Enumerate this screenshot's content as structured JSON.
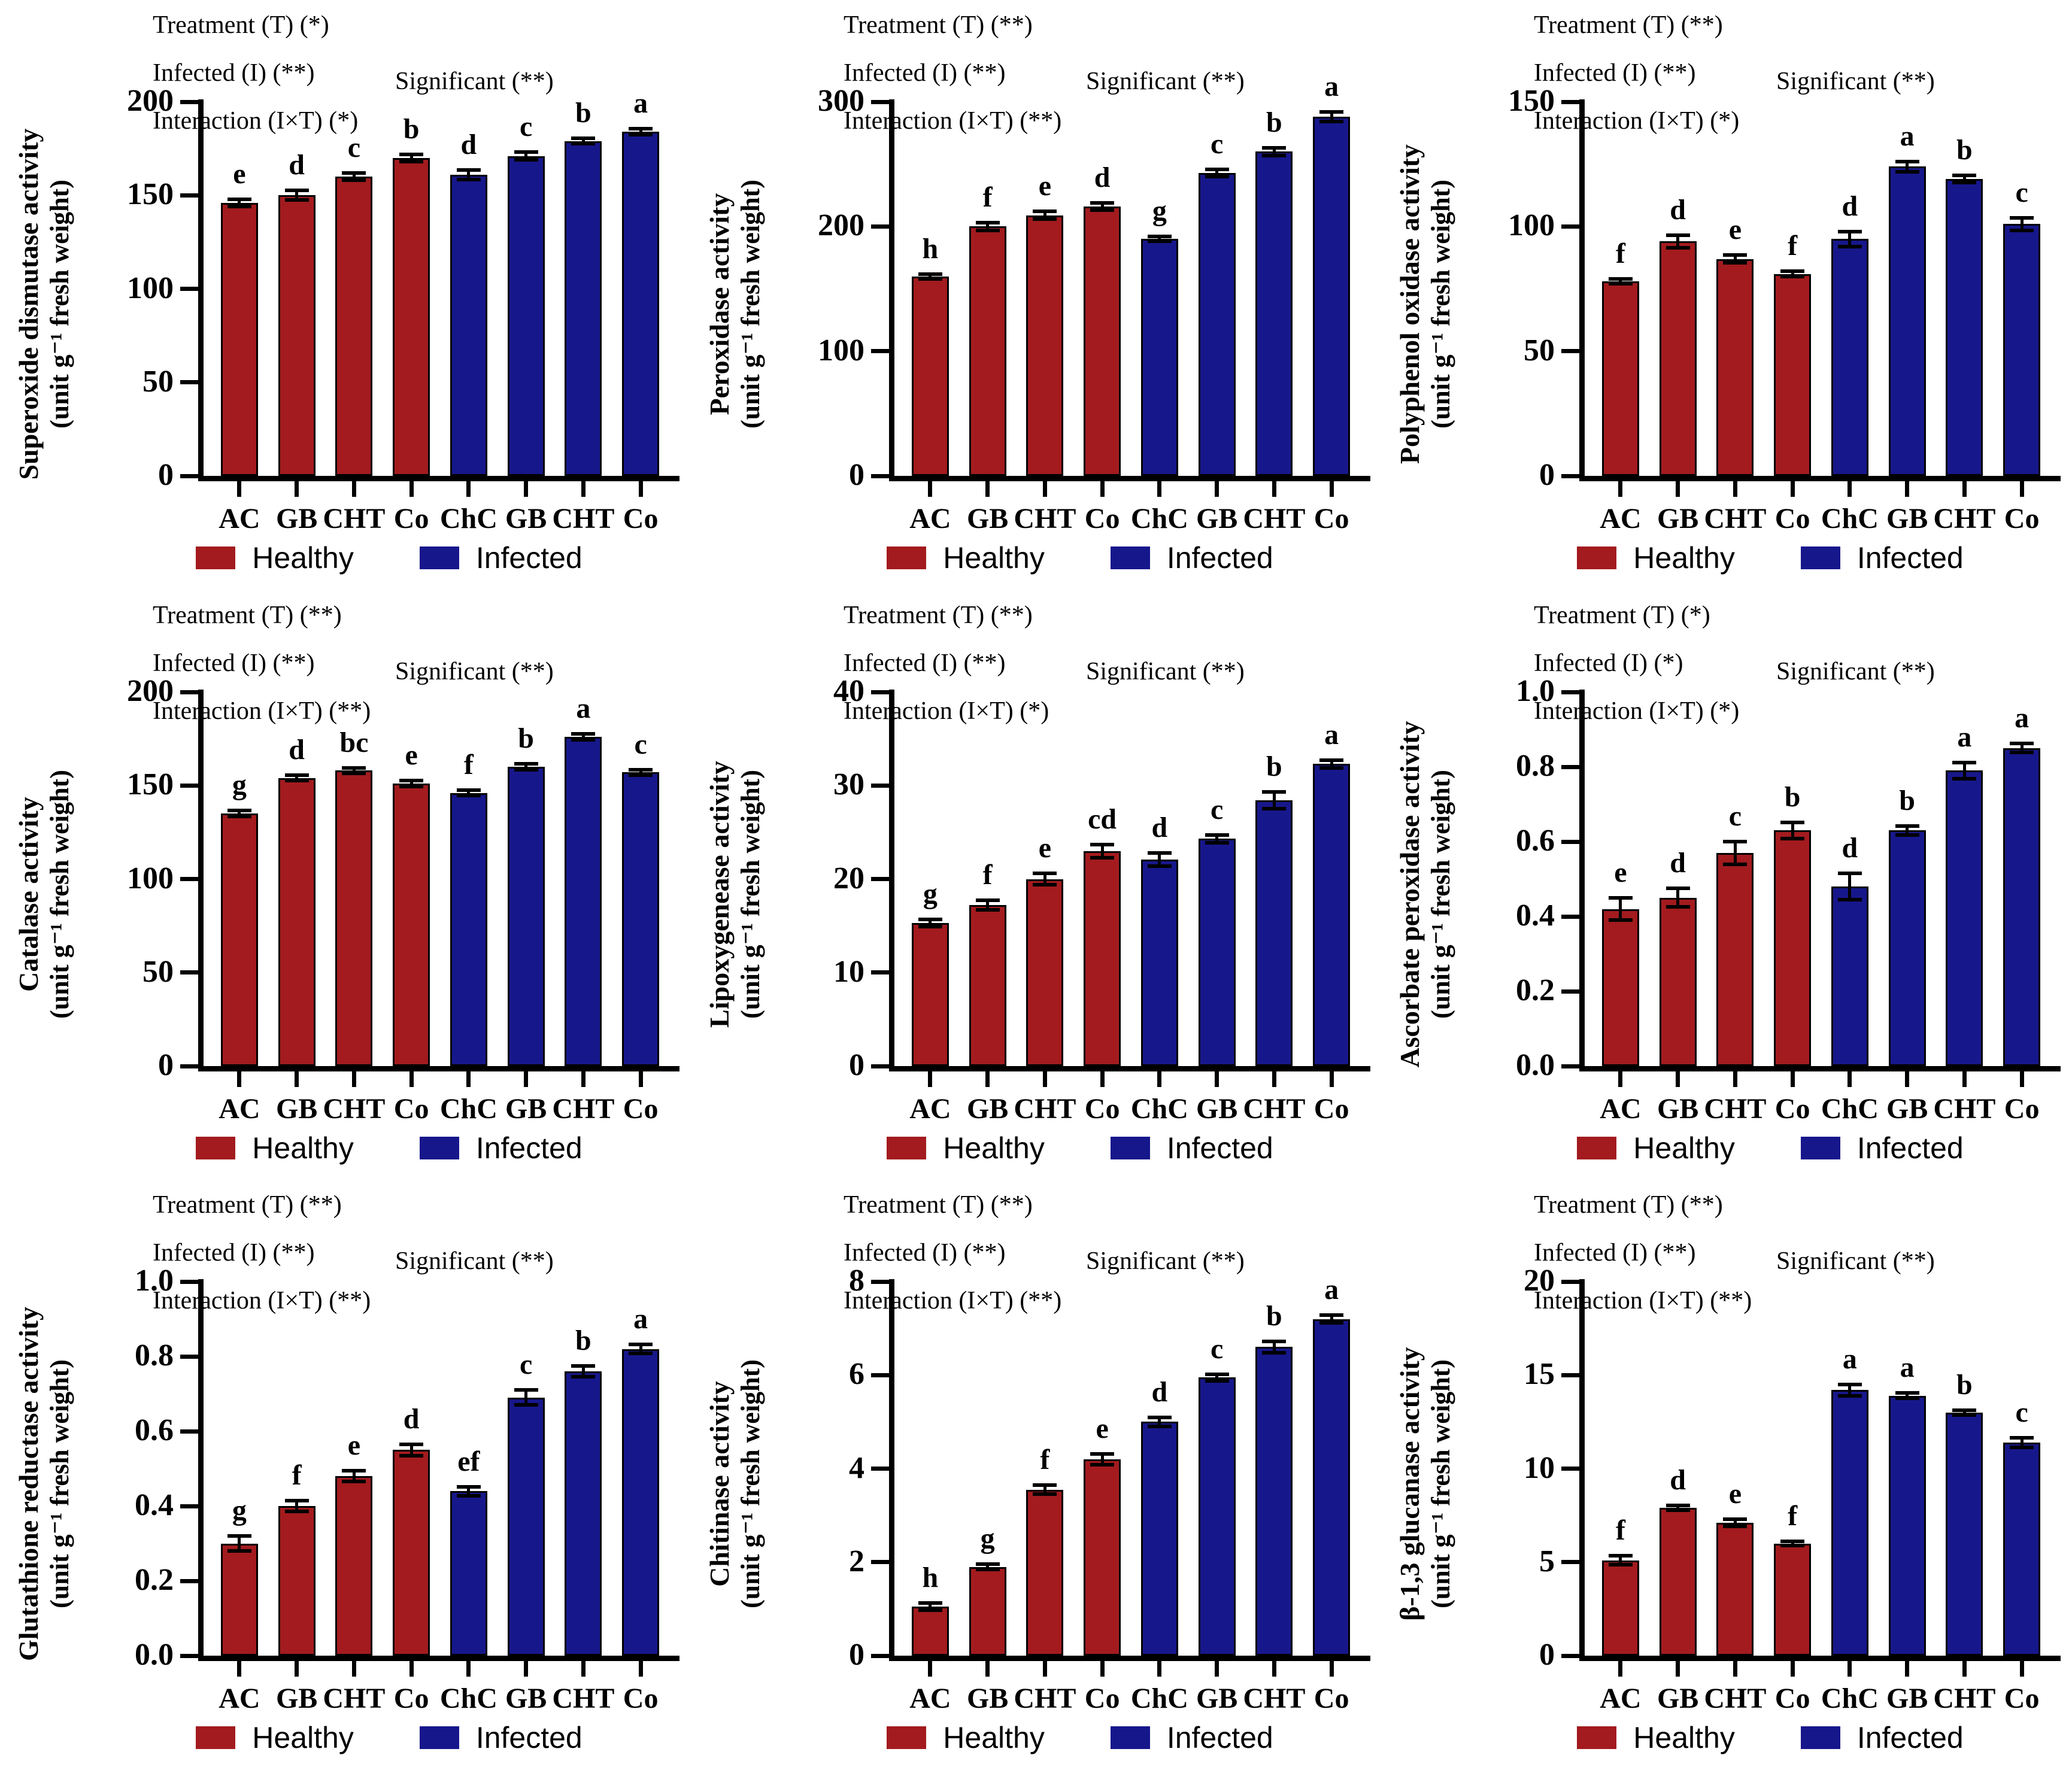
{
  "figure": {
    "background": "#ffffff",
    "rows": 3,
    "cols": 3
  },
  "colors": {
    "healthy": "#a31b1e",
    "infected": "#17178c",
    "axis": "#000000",
    "text": "#000000"
  },
  "legend": {
    "entries": [
      {
        "label": "Healthy",
        "color_key": "healthy"
      },
      {
        "label": "Infected",
        "color_key": "infected"
      }
    ]
  },
  "chart_data": [
    {
      "type": "bar",
      "name": "superoxide-dismutase-activity",
      "ylabel_line1": "Superoxide dismutase activity",
      "ylabel_line2": "(unit g⁻¹ fresh weight)",
      "categories": [
        "AC",
        "GB",
        "CHT",
        "Co",
        "ChC",
        "GB",
        "CHT",
        "Co"
      ],
      "groups": [
        "Healthy",
        "Healthy",
        "Healthy",
        "Healthy",
        "Infected",
        "Infected",
        "Infected",
        "Infected"
      ],
      "values": [
        146,
        150,
        160,
        170,
        161,
        171,
        179,
        184
      ],
      "errors": [
        2,
        2.5,
        2,
        2,
        2.5,
        2,
        1.5,
        1.5
      ],
      "sig_letters": [
        "e",
        "d",
        "c",
        "b",
        "d",
        "c",
        "b",
        "a"
      ],
      "ylim": [
        0,
        200
      ],
      "yticks": [
        0,
        50,
        100,
        150,
        200
      ],
      "ytick_labels": [
        "0",
        "50",
        "100",
        "150",
        "200"
      ],
      "annotations": {
        "treatment": "Treatment (T) (*)",
        "infected": "Infected (I) (**)",
        "interaction": "Interaction (I×T) (*)",
        "significant": "Significant (**)"
      }
    },
    {
      "type": "bar",
      "name": "peroxidase-activity",
      "ylabel_line1": "Peroxidase activity",
      "ylabel_line2": "(unit g⁻¹ fresh weight)",
      "categories": [
        "AC",
        "GB",
        "CHT",
        "Co",
        "ChC",
        "GB",
        "CHT",
        "Co"
      ],
      "groups": [
        "Healthy",
        "Healthy",
        "Healthy",
        "Healthy",
        "Infected",
        "Infected",
        "Infected",
        "Infected"
      ],
      "values": [
        160,
        200,
        209,
        216,
        190,
        243,
        260,
        288
      ],
      "errors": [
        2,
        3,
        3,
        3,
        2,
        3,
        3,
        4
      ],
      "sig_letters": [
        "h",
        "f",
        "e",
        "d",
        "g",
        "c",
        "b",
        "a"
      ],
      "ylim": [
        0,
        300
      ],
      "yticks": [
        0,
        100,
        200,
        300
      ],
      "ytick_labels": [
        "0",
        "100",
        "200",
        "300"
      ],
      "annotations": {
        "treatment": "Treatment (T) (**)",
        "infected": "Infected (I) (**)",
        "interaction": "Interaction (I×T) (**)",
        "significant": "Significant (**)"
      }
    },
    {
      "type": "bar",
      "name": "polyphenol-oxidase-activity",
      "ylabel_line1": "Polyphenol oxidase activity",
      "ylabel_line2": "(unit g⁻¹ fresh weight)",
      "categories": [
        "AC",
        "GB",
        "CHT",
        "Co",
        "ChC",
        "GB",
        "CHT",
        "Co"
      ],
      "groups": [
        "Healthy",
        "Healthy",
        "Healthy",
        "Healthy",
        "Infected",
        "Infected",
        "Infected",
        "Infected"
      ],
      "values": [
        78,
        94,
        87,
        81,
        95,
        124,
        119,
        101
      ],
      "errors": [
        1,
        2.5,
        1.5,
        1,
        3,
        2,
        1.5,
        2.5
      ],
      "sig_letters": [
        "f",
        "d",
        "e",
        "f",
        "d",
        "a",
        "b",
        "c"
      ],
      "ylim": [
        0,
        150
      ],
      "yticks": [
        0,
        50,
        100,
        150
      ],
      "ytick_labels": [
        "0",
        "50",
        "100",
        "150"
      ],
      "annotations": {
        "treatment": "Treatment (T) (**)",
        "infected": "Infected (I) (**)",
        "interaction": "Interaction (I×T) (*)",
        "significant": "Significant (**)"
      }
    },
    {
      "type": "bar",
      "name": "catalase-activity",
      "ylabel_line1": "Catalase activity",
      "ylabel_line2": "(unit g⁻¹ fresh weight)",
      "categories": [
        "AC",
        "GB",
        "CHT",
        "Co",
        "ChC",
        "GB",
        "CHT",
        "Co"
      ],
      "groups": [
        "Healthy",
        "Healthy",
        "Healthy",
        "Healthy",
        "Infected",
        "Infected",
        "Infected",
        "Infected"
      ],
      "values": [
        135,
        154,
        158,
        151,
        146,
        160,
        176,
        157
      ],
      "errors": [
        1.5,
        1.5,
        1.5,
        1.5,
        1.5,
        1.5,
        1.5,
        1.5
      ],
      "sig_letters": [
        "g",
        "d",
        "bc",
        "e",
        "f",
        "b",
        "a",
        "c"
      ],
      "ylim": [
        0,
        200
      ],
      "yticks": [
        0,
        50,
        100,
        150,
        200
      ],
      "ytick_labels": [
        "0",
        "50",
        "100",
        "150",
        "200"
      ],
      "annotations": {
        "treatment": "Treatment (T) (**)",
        "infected": "Infected (I) (**)",
        "interaction": "Interaction (I×T) (**)",
        "significant": "Significant (**)"
      }
    },
    {
      "type": "bar",
      "name": "lipoxygenease-activity",
      "ylabel_line1": "Lipoxygenease activity",
      "ylabel_line2": "(unit g⁻¹ fresh weight)",
      "categories": [
        "AC",
        "GB",
        "CHT",
        "Co",
        "ChC",
        "GB",
        "CHT",
        "Co"
      ],
      "groups": [
        "Healthy",
        "Healthy",
        "Healthy",
        "Healthy",
        "Infected",
        "Infected",
        "Infected",
        "Infected"
      ],
      "values": [
        15.3,
        17.2,
        20.0,
        23.0,
        22.1,
        24.3,
        28.4,
        32.3
      ],
      "errors": [
        0.4,
        0.5,
        0.6,
        0.7,
        0.7,
        0.4,
        0.9,
        0.4
      ],
      "sig_letters": [
        "g",
        "f",
        "e",
        "cd",
        "d",
        "c",
        "b",
        "a"
      ],
      "ylim": [
        0,
        40
      ],
      "yticks": [
        0,
        10,
        20,
        30,
        40
      ],
      "ytick_labels": [
        "0",
        "10",
        "20",
        "30",
        "40"
      ],
      "annotations": {
        "treatment": "Treatment (T) (**)",
        "infected": "Infected (I) (**)",
        "interaction": "Interaction (I×T) (*)",
        "significant": "Significant (**)"
      }
    },
    {
      "type": "bar",
      "name": "ascorbate-peroxidase-activity",
      "ylabel_line1": "Ascorbate peroxidase activity",
      "ylabel_line2": "(unit g⁻¹ fresh weight)",
      "categories": [
        "AC",
        "GB",
        "CHT",
        "Co",
        "ChC",
        "GB",
        "CHT",
        "Co"
      ],
      "groups": [
        "Healthy",
        "Healthy",
        "Healthy",
        "Healthy",
        "Infected",
        "Infected",
        "Infected",
        "Infected"
      ],
      "values": [
        0.42,
        0.45,
        0.57,
        0.63,
        0.48,
        0.63,
        0.79,
        0.85
      ],
      "errors": [
        0.03,
        0.025,
        0.03,
        0.022,
        0.035,
        0.012,
        0.022,
        0.012
      ],
      "sig_letters": [
        "e",
        "d",
        "c",
        "b",
        "d",
        "b",
        "a",
        "a"
      ],
      "ylim": [
        0,
        1.0
      ],
      "yticks": [
        0,
        0.2,
        0.4,
        0.6,
        0.8,
        1.0
      ],
      "ytick_labels": [
        "0.0",
        "0.2",
        "0.4",
        "0.6",
        "0.8",
        "1.0"
      ],
      "annotations": {
        "treatment": "Treatment (T) (*)",
        "infected": "Infected (I) (*)",
        "interaction": "Interaction (I×T) (*)",
        "significant": "Significant (**)"
      }
    },
    {
      "type": "bar",
      "name": "glutathione-reductase-activity",
      "ylabel_line1": "Glutathione reductase activity",
      "ylabel_line2": "(unit g⁻¹ fresh weight)",
      "categories": [
        "AC",
        "GB",
        "CHT",
        "Co",
        "ChC",
        "GB",
        "CHT",
        "Co"
      ],
      "groups": [
        "Healthy",
        "Healthy",
        "Healthy",
        "Healthy",
        "Infected",
        "Infected",
        "Infected",
        "Infected"
      ],
      "values": [
        0.3,
        0.4,
        0.48,
        0.55,
        0.44,
        0.69,
        0.76,
        0.82
      ],
      "errors": [
        0.02,
        0.015,
        0.015,
        0.015,
        0.012,
        0.02,
        0.015,
        0.012
      ],
      "sig_letters": [
        "g",
        "f",
        "e",
        "d",
        "ef",
        "c",
        "b",
        "a"
      ],
      "ylim": [
        0,
        1.0
      ],
      "yticks": [
        0,
        0.2,
        0.4,
        0.6,
        0.8,
        1.0
      ],
      "ytick_labels": [
        "0.0",
        "0.2",
        "0.4",
        "0.6",
        "0.8",
        "1.0"
      ],
      "annotations": {
        "treatment": "Treatment (T) (**)",
        "infected": "Infected (I) (**)",
        "interaction": "Interaction (I×T) (**)",
        "significant": "Significant (**)"
      }
    },
    {
      "type": "bar",
      "name": "chitinase-activity",
      "ylabel_line1": "Chitinase activity",
      "ylabel_line2": "(unit g⁻¹ fresh weight)",
      "categories": [
        "AC",
        "GB",
        "CHT",
        "Co",
        "ChC",
        "GB",
        "CHT",
        "Co"
      ],
      "groups": [
        "Healthy",
        "Healthy",
        "Healthy",
        "Healthy",
        "Infected",
        "Infected",
        "Infected",
        "Infected"
      ],
      "values": [
        1.05,
        1.9,
        3.55,
        4.2,
        5.0,
        5.95,
        6.6,
        7.2
      ],
      "errors": [
        0.08,
        0.06,
        0.1,
        0.12,
        0.1,
        0.07,
        0.12,
        0.08
      ],
      "sig_letters": [
        "h",
        "g",
        "f",
        "e",
        "d",
        "c",
        "b",
        "a"
      ],
      "ylim": [
        0,
        8
      ],
      "yticks": [
        0,
        2,
        4,
        6,
        8
      ],
      "ytick_labels": [
        "0",
        "2",
        "4",
        "6",
        "8"
      ],
      "annotations": {
        "treatment": "Treatment (T) (**)",
        "infected": "Infected (I) (**)",
        "interaction": "Interaction (I×T) (**)",
        "significant": "Significant (**)"
      }
    },
    {
      "type": "bar",
      "name": "beta-1-3-glucanase-activity",
      "ylabel_line1": "β-1,3 glucanase activity",
      "ylabel_line2": "(unit g⁻¹ fresh weight)",
      "categories": [
        "AC",
        "GB",
        "CHT",
        "Co",
        "ChC",
        "GB",
        "CHT",
        "Co"
      ],
      "groups": [
        "Healthy",
        "Healthy",
        "Healthy",
        "Healthy",
        "Infected",
        "Infected",
        "Infected",
        "Infected"
      ],
      "values": [
        5.1,
        7.9,
        7.1,
        6.0,
        14.2,
        13.9,
        13.0,
        11.4
      ],
      "errors": [
        0.25,
        0.12,
        0.2,
        0.12,
        0.3,
        0.15,
        0.12,
        0.25
      ],
      "sig_letters": [
        "f",
        "d",
        "e",
        "f",
        "a",
        "a",
        "b",
        "c"
      ],
      "ylim": [
        0,
        20
      ],
      "yticks": [
        0,
        5,
        10,
        15,
        20
      ],
      "ytick_labels": [
        "0",
        "5",
        "10",
        "15",
        "20"
      ],
      "annotations": {
        "treatment": "Treatment (T) (**)",
        "infected": "Infected (I) (**)",
        "interaction": "Interaction (I×T) (**)",
        "significant": "Significant (**)"
      }
    }
  ]
}
